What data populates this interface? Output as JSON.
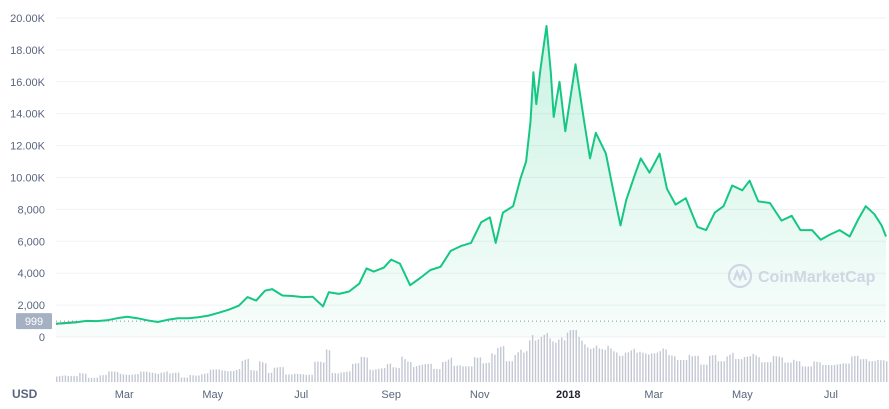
{
  "chart_data": {
    "type": "area",
    "currency": "USD",
    "watermark": "CoinMarketCap",
    "current_value_label": "999",
    "reference_value": 999,
    "y_ticks": [
      "20.00K",
      "18.00K",
      "16.00K",
      "14.00K",
      "12.00K",
      "10.00K",
      "8,000",
      "6,000",
      "4,000",
      "2,000",
      "0"
    ],
    "y_tick_values": [
      20000,
      18000,
      16000,
      14000,
      12000,
      10000,
      8000,
      6000,
      4000,
      2000,
      0
    ],
    "ylim": [
      0,
      20000
    ],
    "x_ticks": [
      {
        "label": "Mar",
        "date": "2017-03-01",
        "bold": false
      },
      {
        "label": "May",
        "date": "2017-05-01",
        "bold": false
      },
      {
        "label": "Jul",
        "date": "2017-07-01",
        "bold": false
      },
      {
        "label": "Sep",
        "date": "2017-09-01",
        "bold": false
      },
      {
        "label": "Nov",
        "date": "2017-11-01",
        "bold": false
      },
      {
        "label": "2018",
        "date": "2018-01-01",
        "bold": true
      },
      {
        "label": "Mar",
        "date": "2018-03-01",
        "bold": false
      },
      {
        "label": "May",
        "date": "2018-05-01",
        "bold": false
      },
      {
        "label": "Jul",
        "date": "2018-07-01",
        "bold": false
      }
    ],
    "xlim": [
      "2017-01-13",
      "2018-08-08"
    ],
    "colors": {
      "up": "#16c784",
      "down": "#ea3943",
      "fill": "#16c784",
      "volume": "#c3c8d3",
      "grid": "#eff2f5",
      "label_bg": "#a6b0c3"
    },
    "series": [
      {
        "values": [
          [
            "2017-01-13",
            830
          ],
          [
            "2017-01-20",
            880
          ],
          [
            "2017-01-27",
            920
          ],
          [
            "2017-02-03",
            1010
          ],
          [
            "2017-02-10",
            995
          ],
          [
            "2017-02-17",
            1050
          ],
          [
            "2017-02-24",
            1170
          ],
          [
            "2017-03-03",
            1270
          ],
          [
            "2017-03-10",
            1180
          ],
          [
            "2017-03-17",
            1050
          ],
          [
            "2017-03-24",
            940
          ],
          [
            "2017-03-31",
            1080
          ],
          [
            "2017-04-07",
            1180
          ],
          [
            "2017-04-14",
            1170
          ],
          [
            "2017-04-21",
            1240
          ],
          [
            "2017-04-28",
            1340
          ],
          [
            "2017-05-05",
            1520
          ],
          [
            "2017-05-12",
            1710
          ],
          [
            "2017-05-19",
            1960
          ],
          [
            "2017-05-25",
            2500
          ],
          [
            "2017-05-31",
            2280
          ],
          [
            "2017-06-06",
            2900
          ],
          [
            "2017-06-11",
            3000
          ],
          [
            "2017-06-18",
            2600
          ],
          [
            "2017-06-25",
            2570
          ],
          [
            "2017-07-02",
            2500
          ],
          [
            "2017-07-09",
            2520
          ],
          [
            "2017-07-16",
            1920
          ],
          [
            "2017-07-20",
            2800
          ],
          [
            "2017-07-27",
            2700
          ],
          [
            "2017-08-03",
            2850
          ],
          [
            "2017-08-10",
            3350
          ],
          [
            "2017-08-15",
            4300
          ],
          [
            "2017-08-20",
            4100
          ],
          [
            "2017-08-27",
            4350
          ],
          [
            "2017-09-01",
            4850
          ],
          [
            "2017-09-07",
            4600
          ],
          [
            "2017-09-14",
            3250
          ],
          [
            "2017-09-21",
            3700
          ],
          [
            "2017-09-28",
            4200
          ],
          [
            "2017-10-05",
            4400
          ],
          [
            "2017-10-12",
            5400
          ],
          [
            "2017-10-19",
            5700
          ],
          [
            "2017-10-26",
            5900
          ],
          [
            "2017-11-02",
            7200
          ],
          [
            "2017-11-08",
            7500
          ],
          [
            "2017-11-12",
            5900
          ],
          [
            "2017-11-17",
            7800
          ],
          [
            "2017-11-24",
            8200
          ],
          [
            "2017-11-29",
            9900
          ],
          [
            "2017-12-03",
            11000
          ],
          [
            "2017-12-06",
            13500
          ],
          [
            "2017-12-08",
            16600
          ],
          [
            "2017-12-10",
            14600
          ],
          [
            "2017-12-13",
            16900
          ],
          [
            "2017-12-17",
            19500
          ],
          [
            "2017-12-20",
            16600
          ],
          [
            "2017-12-22",
            13800
          ],
          [
            "2017-12-26",
            16000
          ],
          [
            "2017-12-30",
            12900
          ],
          [
            "2018-01-06",
            17100
          ],
          [
            "2018-01-12",
            13500
          ],
          [
            "2018-01-16",
            11200
          ],
          [
            "2018-01-20",
            12800
          ],
          [
            "2018-01-27",
            11500
          ],
          [
            "2018-02-01",
            9200
          ],
          [
            "2018-02-06",
            7000
          ],
          [
            "2018-02-10",
            8600
          ],
          [
            "2018-02-16",
            10200
          ],
          [
            "2018-02-20",
            11200
          ],
          [
            "2018-02-26",
            10300
          ],
          [
            "2018-03-05",
            11500
          ],
          [
            "2018-03-10",
            9300
          ],
          [
            "2018-03-16",
            8300
          ],
          [
            "2018-03-23",
            8700
          ],
          [
            "2018-03-31",
            6900
          ],
          [
            "2018-04-06",
            6700
          ],
          [
            "2018-04-12",
            7800
          ],
          [
            "2018-04-18",
            8200
          ],
          [
            "2018-04-24",
            9500
          ],
          [
            "2018-05-01",
            9200
          ],
          [
            "2018-05-06",
            9800
          ],
          [
            "2018-05-12",
            8500
          ],
          [
            "2018-05-20",
            8400
          ],
          [
            "2018-05-28",
            7300
          ],
          [
            "2018-06-04",
            7600
          ],
          [
            "2018-06-10",
            6700
          ],
          [
            "2018-06-18",
            6700
          ],
          [
            "2018-06-24",
            6100
          ],
          [
            "2018-06-30",
            6400
          ],
          [
            "2018-07-07",
            6700
          ],
          [
            "2018-07-14",
            6300
          ],
          [
            "2018-07-20",
            7400
          ],
          [
            "2018-07-25",
            8200
          ],
          [
            "2018-07-31",
            7700
          ],
          [
            "2018-08-05",
            7000
          ],
          [
            "2018-08-08",
            6300
          ]
        ]
      }
    ]
  }
}
